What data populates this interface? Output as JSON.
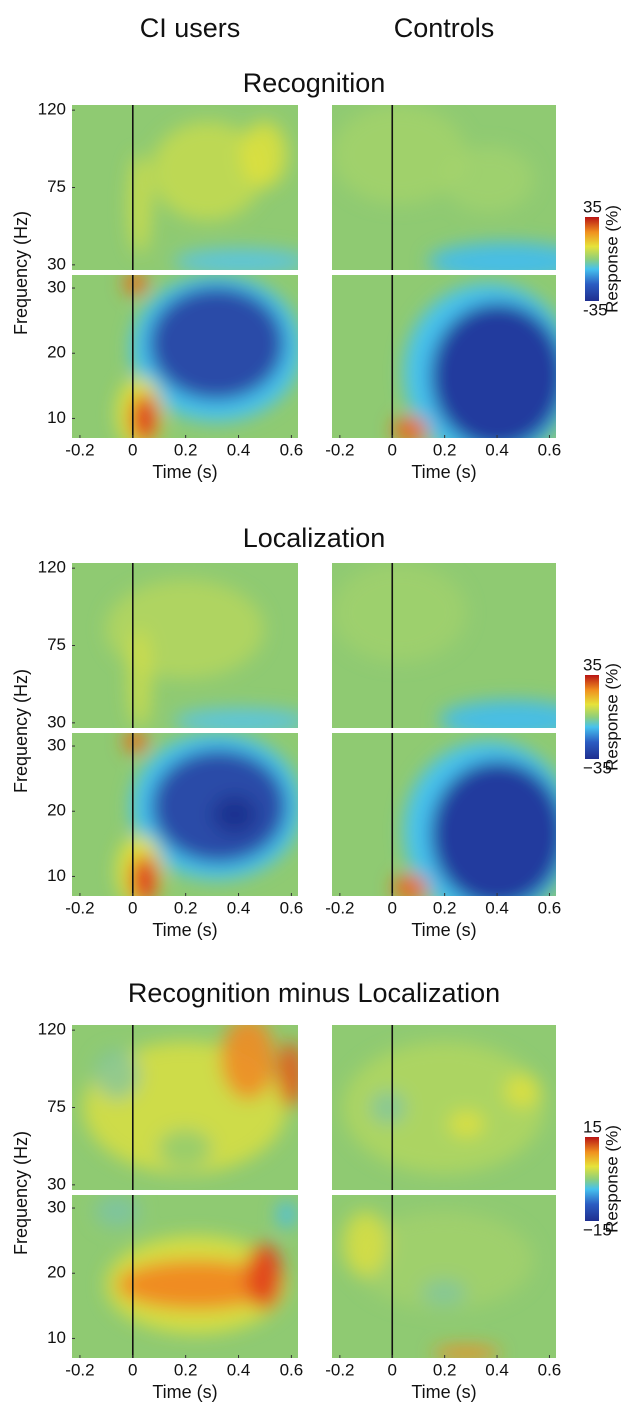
{
  "column_titles": [
    "CI users",
    "Controls"
  ],
  "section_titles": [
    "Recognition",
    "Localization",
    "Recognition minus Localization"
  ],
  "chart_data": [
    {
      "type": "heatmap",
      "xlabel": "Time (s)",
      "ylabel": "Frequency (Hz)",
      "xlim": [
        -0.23,
        0.625
      ],
      "xticks": [
        -0.2,
        0,
        0.2,
        0.4,
        0.6
      ],
      "upper_ylim": [
        27,
        123
      ],
      "upper_yticks": [
        30,
        75,
        120
      ],
      "ylim": [
        7,
        32
      ],
      "yticks": [
        10,
        20,
        30
      ]
    },
    {
      "type": "heatmap",
      "xlabel": "Time (s)",
      "xlim": [
        -0.23,
        0.625
      ],
      "xticks": [
        -0.2,
        0,
        0.2,
        0.4,
        0.6
      ],
      "upper_ylim": [
        27,
        123
      ],
      "ylim": [
        7,
        32
      ],
      "colorbar": {
        "label": "Response (%)",
        "lim": [
          -35,
          35
        ],
        "ticks": [
          35,
          -35
        ]
      }
    },
    {
      "type": "heatmap",
      "xlabel": "Time (s)",
      "ylabel": "Frequency (Hz)",
      "xlim": [
        -0.23,
        0.625
      ],
      "xticks": [
        -0.2,
        0,
        0.2,
        0.4,
        0.6
      ],
      "upper_ylim": [
        27,
        123
      ],
      "upper_yticks": [
        30,
        75,
        120
      ],
      "ylim": [
        7,
        32
      ],
      "yticks": [
        10,
        20,
        30
      ]
    },
    {
      "type": "heatmap",
      "xlabel": "Time (s)",
      "xlim": [
        -0.23,
        0.625
      ],
      "xticks": [
        -0.2,
        0,
        0.2,
        0.4,
        0.6
      ],
      "upper_ylim": [
        27,
        123
      ],
      "ylim": [
        7,
        32
      ],
      "colorbar": {
        "label": "Response (%)",
        "lim": [
          -35,
          35
        ],
        "ticks": [
          35,
          {
            "value": -35,
            "label": "−35"
          }
        ]
      }
    },
    {
      "type": "heatmap",
      "xlabel": "Time (s)",
      "ylabel": "Frequency (Hz)",
      "xlim": [
        -0.23,
        0.625
      ],
      "xticks": [
        -0.2,
        0,
        0.2,
        0.4,
        0.6
      ],
      "upper_ylim": [
        27,
        123
      ],
      "upper_yticks": [
        30,
        75,
        120
      ],
      "ylim": [
        7,
        32
      ],
      "yticks": [
        10,
        20,
        30
      ]
    },
    {
      "type": "heatmap",
      "xlabel": "Time (s)",
      "xlim": [
        -0.23,
        0.625
      ],
      "xticks": [
        -0.2,
        0,
        0.2,
        0.4,
        0.6
      ],
      "upper_ylim": [
        27,
        123
      ],
      "ylim": [
        7,
        32
      ],
      "colorbar": {
        "label": "Response (%)",
        "lim": [
          -15,
          15
        ],
        "ticks": [
          15,
          {
            "value": -15,
            "label": "−15"
          }
        ]
      }
    }
  ]
}
